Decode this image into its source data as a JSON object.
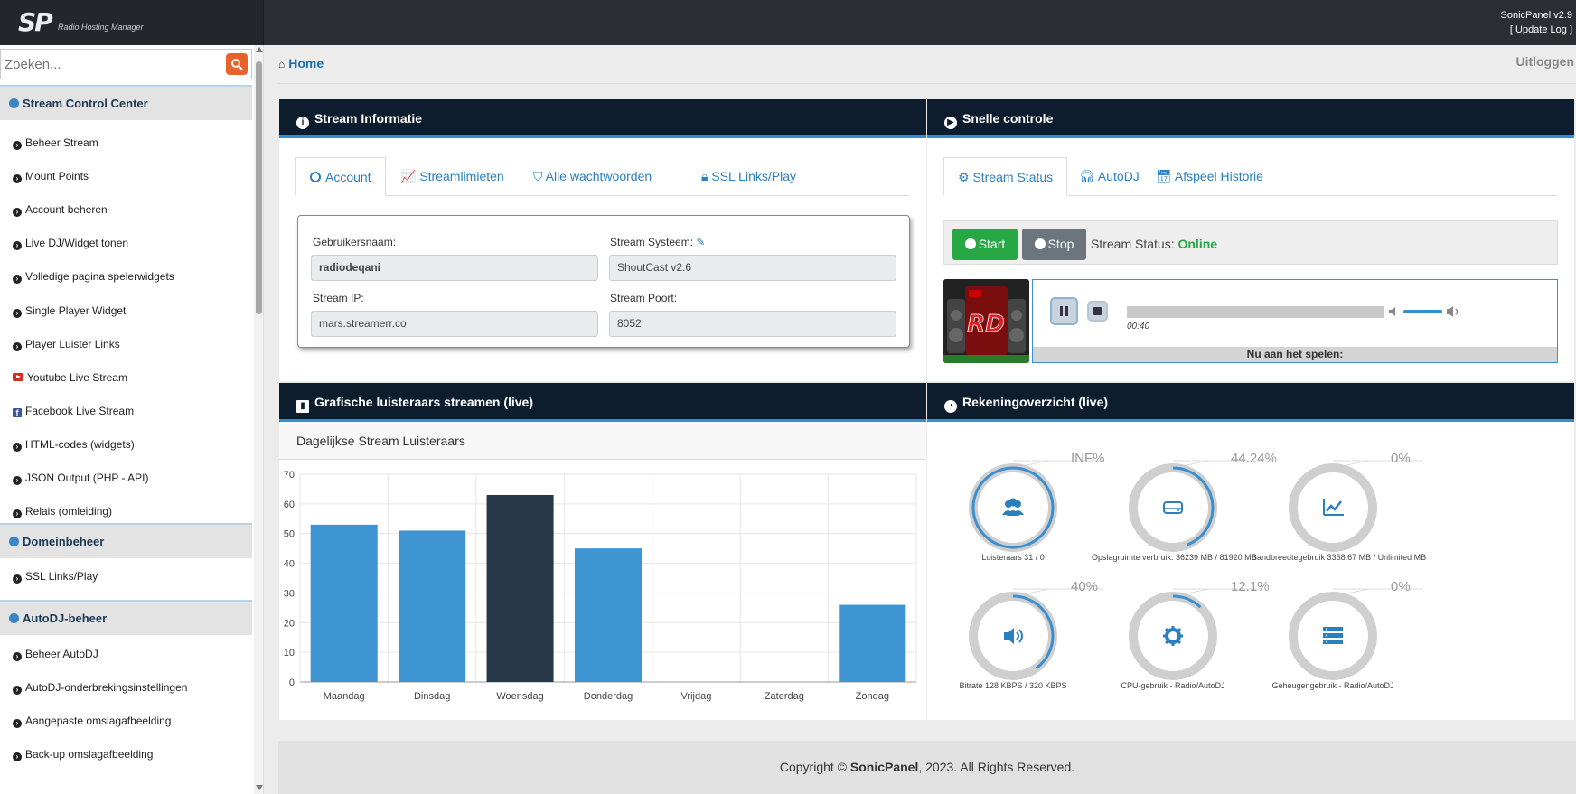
{
  "header": {
    "logo_text": "SP",
    "logo_subtitle": "Radio Hosting Manager",
    "version": "SonicPanel v2.9",
    "update_log": "[ Update Log ]"
  },
  "sidebar": {
    "search_placeholder": "Zoeken...",
    "sections": [
      {
        "title": "Stream Control Center",
        "items": [
          "Beheer Stream",
          "Mount Points",
          "Account beheren",
          "Live DJ/Widget tonen",
          "Volledige pagina spelerwidgets",
          "Single Player Widget",
          "Player Luister Links",
          "Youtube Live Stream",
          "Facebook Live Stream",
          "HTML-codes (widgets)",
          "JSON Output (PHP - API)",
          "Relais (omleiding)"
        ]
      },
      {
        "title": "Domeinbeheer",
        "items": [
          "SSL Links/Play"
        ]
      },
      {
        "title": "AutoDJ-beheer",
        "items": [
          "Beheer AutoDJ",
          "AutoDJ-onderbrekingsinstellingen",
          "Aangepaste omslagafbeelding",
          "Back-up omslagafbeelding"
        ]
      }
    ]
  },
  "breadcrumb": {
    "home": "Home"
  },
  "logout": "Uitloggen",
  "stream_info": {
    "title": "Stream Informatie",
    "tabs": [
      "Account",
      "Streamlimieten",
      "Alle wachtwoorden",
      "SSL Links/Play"
    ],
    "fields": {
      "username_label": "Gebruikersnaam:",
      "username_value": "radiodeqani",
      "system_label": "Stream Systeem:",
      "system_value": "ShoutCast v2.6",
      "ip_label": "Stream IP:",
      "ip_value": "mars.streamerr.co",
      "port_label": "Stream Poort:",
      "port_value": "8052"
    }
  },
  "quick_control": {
    "title": "Snelle controle",
    "tabs": [
      "Stream Status",
      "AutoDJ",
      "Afspeel Historie"
    ],
    "start_label": "Start",
    "stop_label": "Stop",
    "status_label": "Stream Status:",
    "status_value": "Online",
    "player_time": "00:40",
    "now_playing": "Nu aan het spelen:"
  },
  "listener_chart": {
    "title": "Grafische luisteraars streamen (live)",
    "subtitle": "Dagelijkse Stream Luisteraars"
  },
  "chart_data": {
    "type": "bar",
    "categories": [
      "Maandag",
      "Dinsdag",
      "Woensdag",
      "Donderdag",
      "Vrijdag",
      "Zaterdag",
      "Zondag"
    ],
    "values": [
      53,
      51,
      63,
      45,
      0,
      0,
      26
    ],
    "highlight_index": 2,
    "ylim": [
      0,
      70
    ],
    "yticks": [
      0,
      10,
      20,
      30,
      40,
      50,
      60,
      70
    ],
    "colors": {
      "bar": "#3f95d1",
      "highlight": "#263748"
    },
    "grid": true
  },
  "account_overview": {
    "title": "Rekeningoverzicht (live)",
    "gauges": [
      {
        "pct_text": "INF%",
        "fraction": 1.0,
        "label": "Luisteraars 31 / 0",
        "icon": "users-icon"
      },
      {
        "pct_text": "44.24%",
        "fraction": 0.4424,
        "label": "Opslagruimte verbruik. 36239 MB / 81920 MB",
        "icon": "harddrive-icon"
      },
      {
        "pct_text": "0%",
        "fraction": 0,
        "label": "Bandbreedtegebruik 3358.67 MB / Unlimited MB",
        "icon": "chart-line-icon"
      },
      {
        "pct_text": "40%",
        "fraction": 0.4,
        "label": "Bitrate 128 KBPS / 320 KBPS",
        "icon": "volume-icon"
      },
      {
        "pct_text": "12.1%",
        "fraction": 0.121,
        "label": "CPU-gebruik - Radio/AutoDJ",
        "icon": "gear-icon"
      },
      {
        "pct_text": "0%",
        "fraction": 0,
        "label": "Geheugengebruik - Radio/AutoDJ",
        "icon": "server-icon"
      }
    ]
  },
  "footer": {
    "prefix": "Copyright ©",
    "brand": "SonicPanel",
    "suffix": ", 2023. All Rights Reserved."
  },
  "colors": {
    "accent": "#2f8fd8",
    "header_dark": "#0d1d2d",
    "online": "#28a745"
  }
}
